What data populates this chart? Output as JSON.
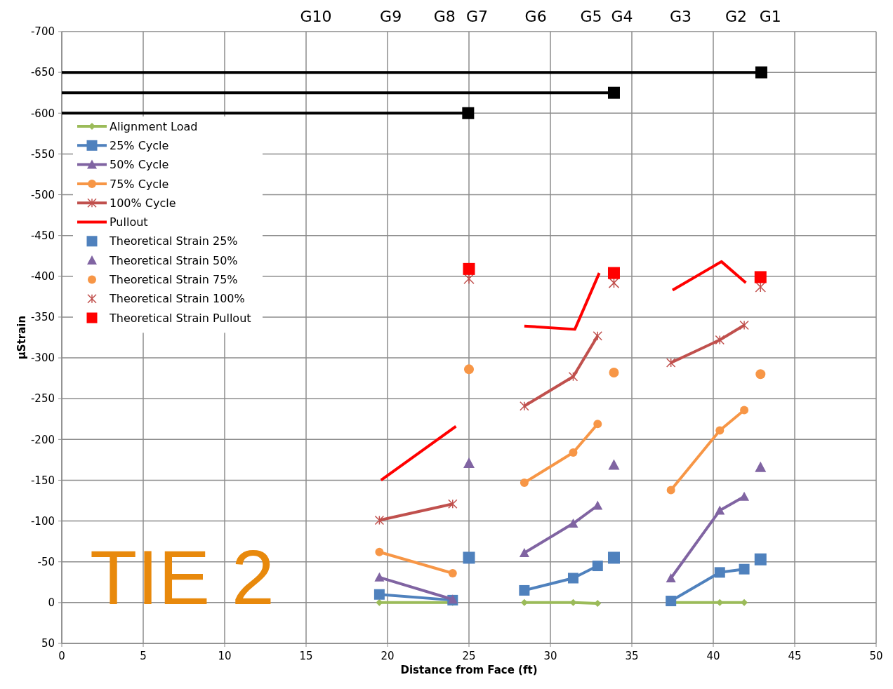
{
  "chart_data": {
    "type": "line",
    "xlabel": "Distance from Face (ft)",
    "ylabel": "µStrain",
    "xlim": [
      0,
      50
    ],
    "xticks": [
      0,
      5,
      10,
      15,
      20,
      25,
      30,
      35,
      40,
      45,
      50
    ],
    "ylim": [
      50,
      -700
    ],
    "yticks": [
      50,
      0,
      -50,
      -100,
      -150,
      -200,
      -250,
      -300,
      -350,
      -400,
      -450,
      -500,
      -550,
      -600,
      -650,
      -700
    ],
    "grid": true,
    "legend": "top left",
    "line_style": "solid",
    "annotations": [
      "G10",
      "G9",
      "G8",
      "G7",
      "G6",
      "G5",
      "G4",
      "G3",
      "G2",
      "G1",
      "TIE 2"
    ],
    "series": [
      {
        "name": "Alignment Load",
        "marker": "diamond",
        "color": "#9bbb59",
        "x": [
          19.5,
          24,
          26,
          28.4,
          31.4,
          32.9,
          35,
          37.4,
          40.4,
          41.9
        ],
        "values": [
          0,
          0,
          null,
          0,
          0,
          1,
          null,
          0,
          0,
          0
        ]
      },
      {
        "name": "25% Cycle",
        "marker": "square",
        "color": "#4f81bd",
        "x": [
          19.5,
          24,
          26,
          28.4,
          31.4,
          32.9,
          35,
          37.4,
          40.4,
          41.9
        ],
        "values": [
          -10,
          -3,
          null,
          -15,
          -30,
          -45,
          null,
          -2,
          -37,
          -41
        ]
      },
      {
        "name": "50% Cycle",
        "marker": "triangle",
        "color": "#8064a2",
        "x": [
          19.5,
          24,
          26,
          28.4,
          31.4,
          32.9,
          35,
          37.4,
          40.4,
          41.9
        ],
        "values": [
          -31,
          -4,
          null,
          -61,
          -97,
          -119,
          null,
          -30,
          -113,
          -130
        ]
      },
      {
        "name": "75% Cycle",
        "marker": "circle",
        "color": "#f79646",
        "x": [
          19.5,
          24,
          26,
          28.4,
          31.4,
          32.9,
          35,
          37.4,
          40.4,
          41.9
        ],
        "values": [
          -62,
          -36,
          null,
          -147,
          -184,
          -219,
          null,
          -138,
          -211,
          -236
        ]
      },
      {
        "name": "100% Cycle",
        "marker": "cross",
        "color": "#c0504d",
        "x": [
          19.5,
          24,
          26,
          28.4,
          31.4,
          32.9,
          35,
          37.4,
          40.4,
          41.9
        ],
        "values": [
          -101,
          -121,
          null,
          -241,
          -277,
          -327,
          null,
          -294,
          -322,
          -340
        ]
      },
      {
        "name": "Pullout",
        "marker": "none",
        "color": "#ff0000",
        "x": [
          19.6,
          24.2,
          26,
          28.4,
          31.5,
          33,
          35,
          37.5,
          40.5,
          42
        ],
        "values": [
          -150,
          -216,
          null,
          -339,
          -335,
          -404,
          null,
          -383,
          -418,
          -392
        ]
      },
      {
        "name": "Theoretical Strain 25%",
        "type": "scatter",
        "marker": "square",
        "color": "#4f81bd",
        "x": [
          25,
          33.9,
          42.9
        ],
        "values": [
          -55,
          -55,
          -53
        ]
      },
      {
        "name": "Theoretical Strain 50%",
        "type": "scatter",
        "marker": "triangle",
        "color": "#8064a2",
        "x": [
          25,
          33.9,
          42.9
        ],
        "values": [
          -171,
          -169,
          -166
        ]
      },
      {
        "name": "Theoretical Strain 75%",
        "type": "scatter",
        "marker": "circle",
        "color": "#f79646",
        "x": [
          25,
          33.9,
          42.9
        ],
        "values": [
          -286,
          -282,
          -280
        ]
      },
      {
        "name": "Theoretical Strain 100%",
        "type": "scatter",
        "marker": "cross",
        "color": "#c0504d",
        "x": [
          25,
          33.9,
          42.9
        ],
        "values": [
          -397,
          -392,
          -387
        ]
      },
      {
        "name": "Theoretical Strain Pullout",
        "type": "scatter",
        "marker": "square",
        "color": "#ff0000",
        "x": [
          25,
          33.9,
          42.9
        ],
        "values": [
          -409,
          -404,
          -399
        ]
      },
      {
        "marker": "none",
        "color": "#000000",
        "x": [
          0,
          42.95
        ],
        "values": [
          -650,
          -650
        ]
      },
      {
        "marker": "none",
        "color": "#000000",
        "x": [
          0,
          33.9
        ],
        "values": [
          -625,
          -625
        ]
      },
      {
        "marker": "none",
        "color": "#000000",
        "x": [
          0,
          24.95
        ],
        "values": [
          -600,
          -600
        ]
      },
      {
        "type": "scatter",
        "marker": "square",
        "color": "#000000",
        "x": [
          42.95,
          33.9,
          24.95
        ],
        "values": [
          -650,
          -625,
          -600
        ]
      }
    ]
  }
}
